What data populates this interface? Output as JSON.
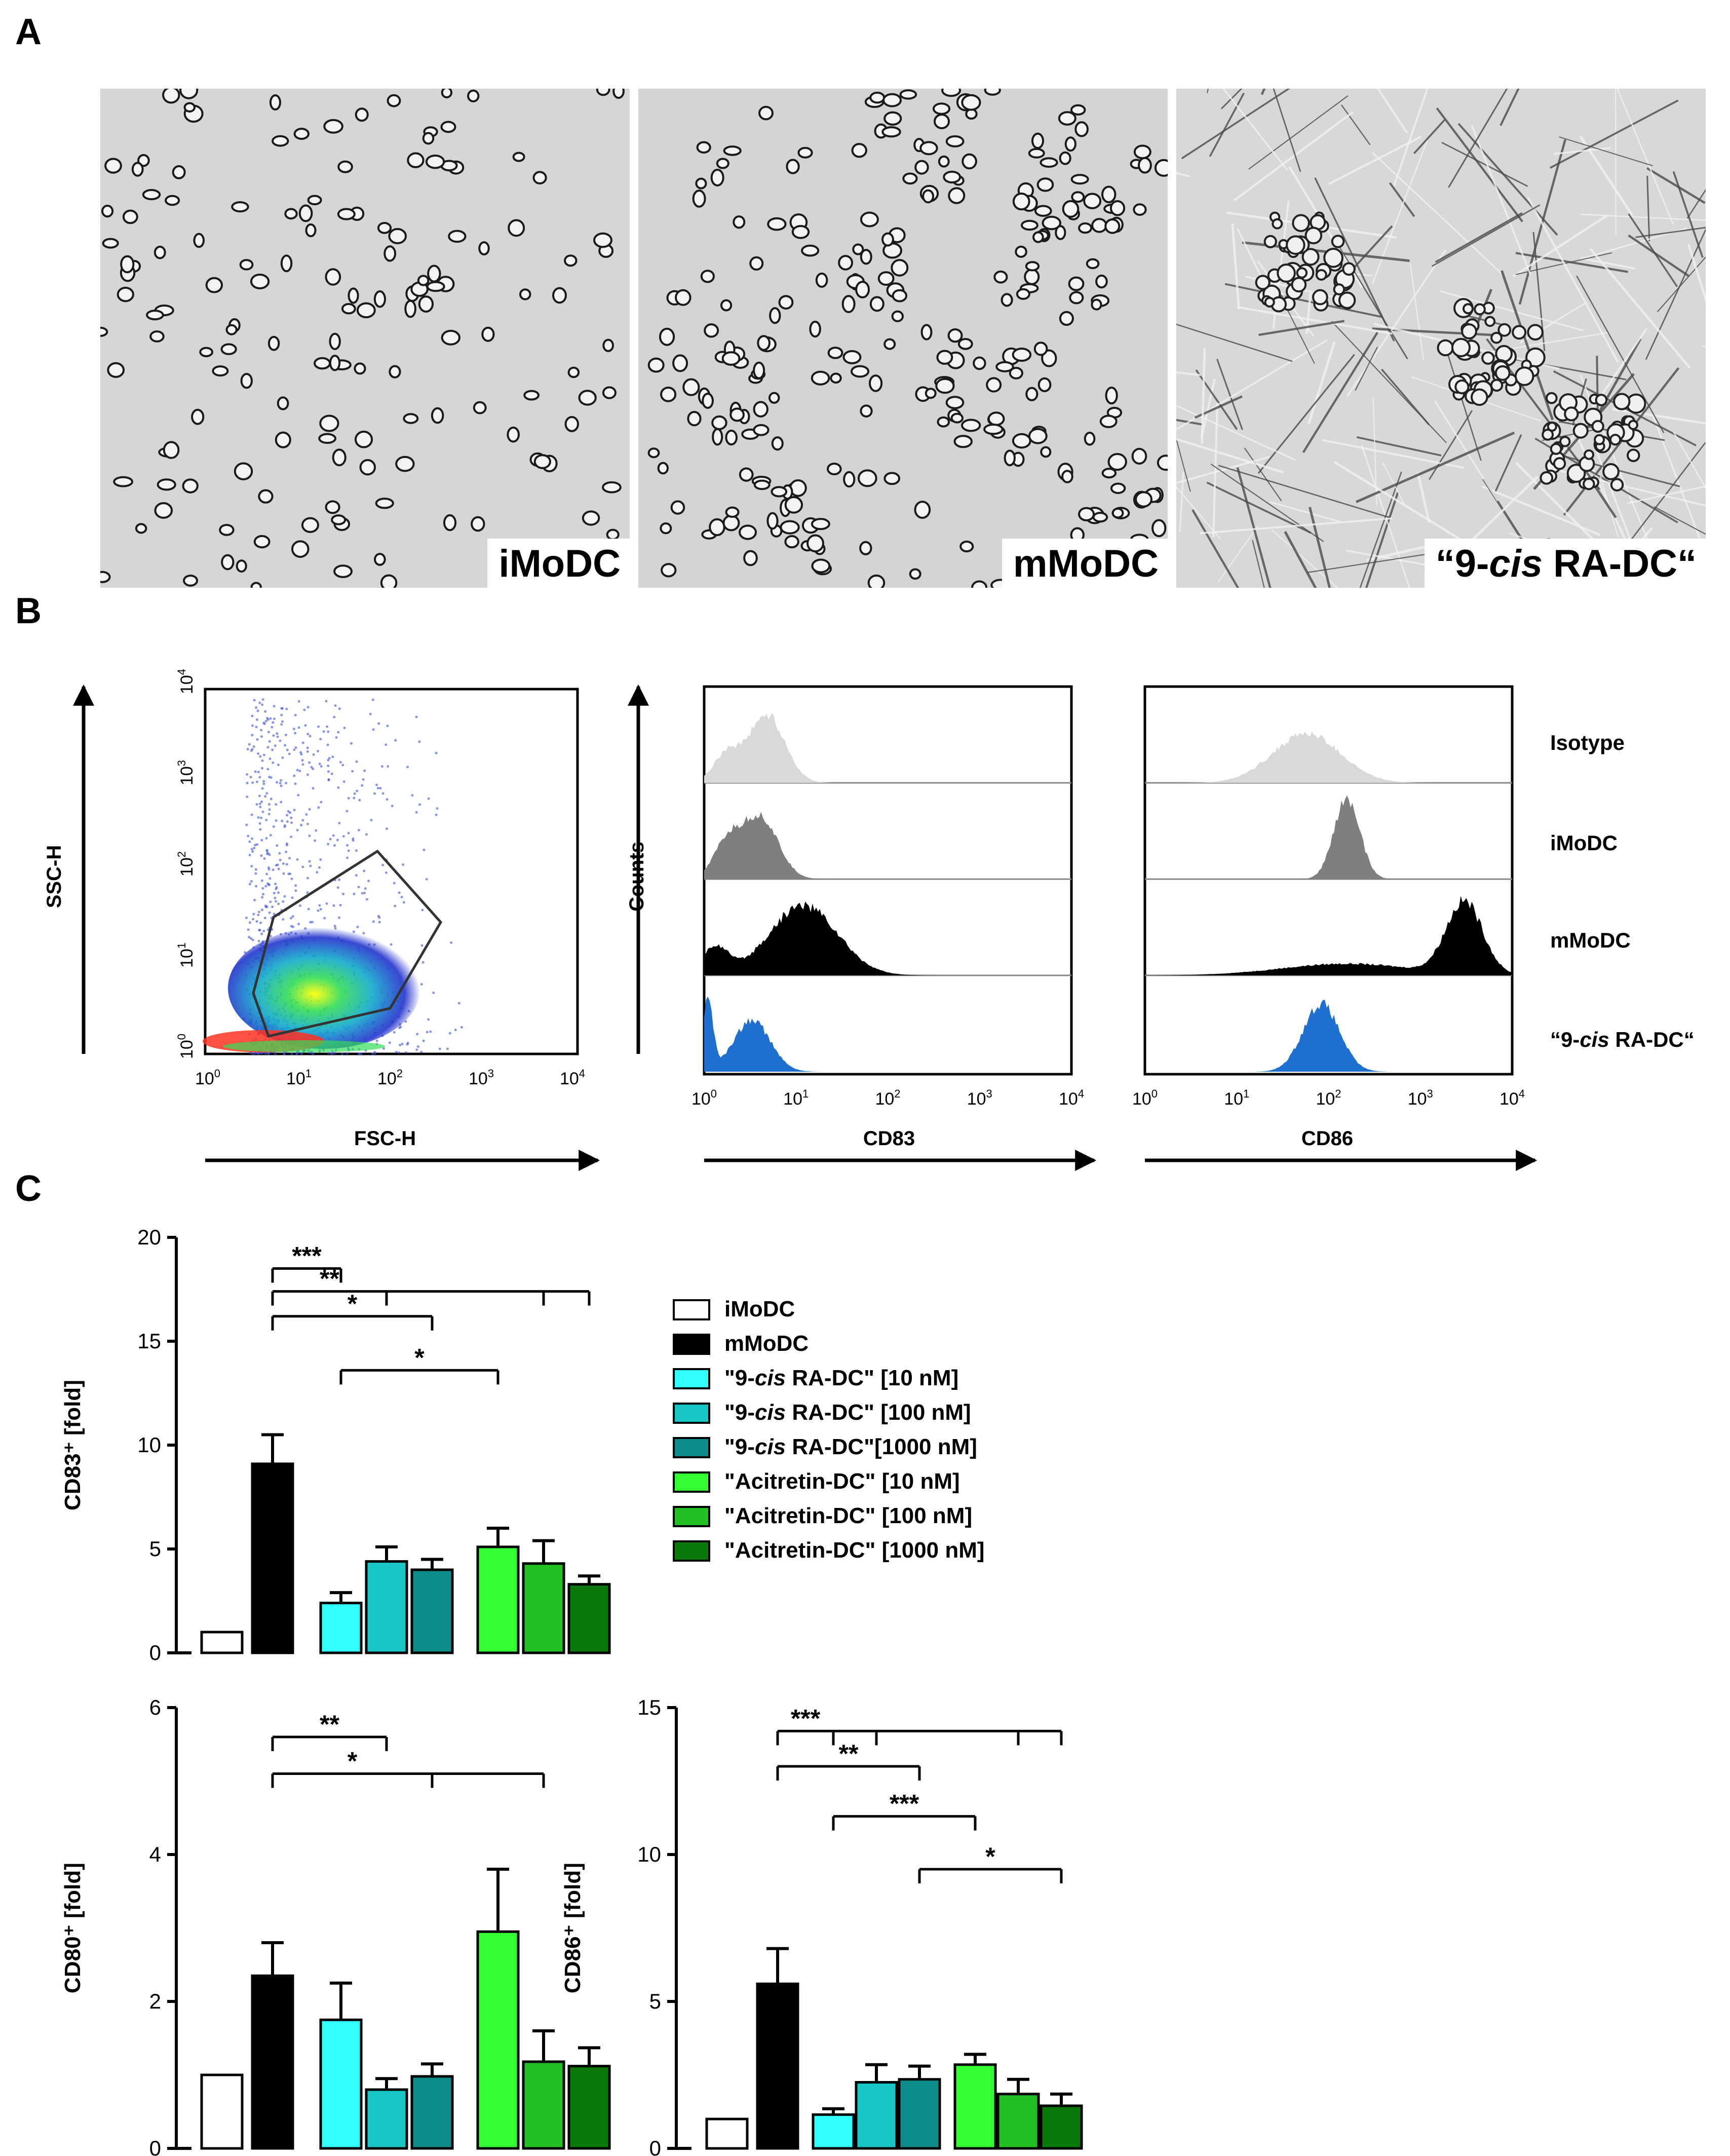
{
  "panels": {
    "A": "A",
    "B": "B",
    "C": "C"
  },
  "micrographs": [
    {
      "label": "iMoDC"
    },
    {
      "label": "mMoDC"
    },
    {
      "label_parts": [
        "“9-",
        "cis",
        " RA-DC“"
      ]
    }
  ],
  "flow": {
    "scatter": {
      "x_label": "FSC-H",
      "y_label": "SSC-H",
      "x_ticks": [
        "0",
        "1",
        "2",
        "3",
        "4"
      ],
      "y_ticks": [
        "0",
        "1",
        "2",
        "3",
        "4"
      ],
      "tick_base": "10"
    },
    "hist_y_label": "Counts",
    "cd83": {
      "x_label": "CD83",
      "ticks": [
        "0",
        "1",
        "2",
        "3",
        "4"
      ],
      "tick_base": "10"
    },
    "cd86": {
      "x_label": "CD86",
      "ticks": [
        "0",
        "1",
        "2",
        "3",
        "4"
      ],
      "tick_base": "10"
    },
    "rows": [
      {
        "label": "Isotype",
        "color": "#d9d9d9"
      },
      {
        "label": "iMoDC",
        "color": "#7f7f7f"
      },
      {
        "label": "mMoDC",
        "color": "#000000"
      },
      {
        "label_parts": [
          "“9-",
          "cis",
          " RA-DC“"
        ],
        "color": "#1f6fd1"
      }
    ]
  },
  "legend": [
    {
      "parts": [
        "iMoDC"
      ],
      "color": "#ffffff"
    },
    {
      "parts": [
        "mMoDC"
      ],
      "color": "#000000"
    },
    {
      "parts": [
        "\"9-",
        "cis",
        " RA-DC\" [10 nM]"
      ],
      "color": "#33ffff"
    },
    {
      "parts": [
        "\"9-",
        "cis",
        " RA-DC\" [100 nM]"
      ],
      "color": "#19c6c6"
    },
    {
      "parts": [
        "\"9-",
        "cis",
        " RA-DC\"[1000 nM]"
      ],
      "color": "#0e8c8c"
    },
    {
      "parts": [
        "\"Acitretin-DC\" [10 nM]"
      ],
      "color": "#33ff33"
    },
    {
      "parts": [
        "\"Acitretin-DC\" [100 nM]"
      ],
      "color": "#22c022"
    },
    {
      "parts": [
        "\"Acitretin-DC\" [1000 nM]"
      ],
      "color": "#0a780a"
    }
  ],
  "chart_data": [
    {
      "type": "bar",
      "id": "cd83",
      "ylabel": "CD83⁺ [fold]",
      "ylim": [
        0,
        20
      ],
      "yticks": [
        0,
        5,
        10,
        15,
        20
      ],
      "categories": [
        "iMoDC",
        "mMoDC",
        "\"9-cis RA-DC\" [10 nM]",
        "\"9-cis RA-DC\" [100 nM]",
        "\"9-cis RA-DC\"[1000 nM]",
        "\"Acitretin-DC\" [10 nM]",
        "\"Acitretin-DC\" [100 nM]",
        "\"Acitretin-DC\" [1000 nM]"
      ],
      "values": [
        1.0,
        9.1,
        2.4,
        4.4,
        4.0,
        5.1,
        4.3,
        3.3
      ],
      "errors": [
        0,
        1.4,
        0.5,
        0.7,
        0.5,
        0.9,
        1.1,
        0.4
      ],
      "significance": [
        {
          "label": "***",
          "from": 1,
          "to": [
            2
          ],
          "y": 18.5
        },
        {
          "label": "**",
          "from": 1,
          "to": [
            3,
            6,
            7
          ],
          "y": 17.4
        },
        {
          "label": "*",
          "from": 1,
          "to": [
            4
          ],
          "y": 16.2
        },
        {
          "label": "*",
          "from": 2,
          "to": [
            5
          ],
          "y": 13.6
        }
      ]
    },
    {
      "type": "bar",
      "id": "cd80",
      "ylabel": "CD80⁺ [fold]",
      "ylim": [
        0,
        6
      ],
      "yticks": [
        0,
        2,
        4,
        6
      ],
      "categories": [
        "iMoDC",
        "mMoDC",
        "\"9-cis RA-DC\" [10 nM]",
        "\"9-cis RA-DC\" [100 nM]",
        "\"9-cis RA-DC\"[1000 nM]",
        "\"Acitretin-DC\" [10 nM]",
        "\"Acitretin-DC\" [100 nM]",
        "\"Acitretin-DC\" [1000 nM]"
      ],
      "values": [
        1.0,
        2.35,
        1.75,
        0.8,
        0.98,
        2.95,
        1.18,
        1.12
      ],
      "errors": [
        0,
        0.45,
        0.5,
        0.15,
        0.17,
        0.85,
        0.42,
        0.25
      ],
      "significance": [
        {
          "label": "**",
          "from": 1,
          "to": [
            3
          ],
          "y": 5.6
        },
        {
          "label": "*",
          "from": 1,
          "to": [
            4,
            6
          ],
          "y": 5.1
        }
      ]
    },
    {
      "type": "bar",
      "id": "cd86",
      "ylabel": "CD86⁺ [fold]",
      "ylim": [
        0,
        15
      ],
      "yticks": [
        0,
        5,
        10,
        15
      ],
      "categories": [
        "iMoDC",
        "mMoDC",
        "\"9-cis RA-DC\" [10 nM]",
        "\"9-cis RA-DC\" [100 nM]",
        "\"9-cis RA-DC\"[1000 nM]",
        "\"Acitretin-DC\" [10 nM]",
        "\"Acitretin-DC\" [100 nM]",
        "\"Acitretin-DC\" [1000 nM]"
      ],
      "values": [
        1.0,
        5.6,
        1.15,
        2.25,
        2.35,
        2.85,
        1.85,
        1.45
      ],
      "errors": [
        0,
        1.2,
        0.2,
        0.6,
        0.45,
        0.35,
        0.5,
        0.4
      ],
      "significance": [
        {
          "label": "***",
          "from": 1,
          "to": [
            2,
            3,
            6,
            7
          ],
          "y": 14.2
        },
        {
          "label": "**",
          "from": 1,
          "to": [
            4
          ],
          "y": 13.0
        },
        {
          "label": "***",
          "from": 2,
          "to": [
            5
          ],
          "y": 11.3
        },
        {
          "label": "*",
          "from": 4,
          "to": [
            7
          ],
          "y": 9.5
        }
      ]
    }
  ]
}
